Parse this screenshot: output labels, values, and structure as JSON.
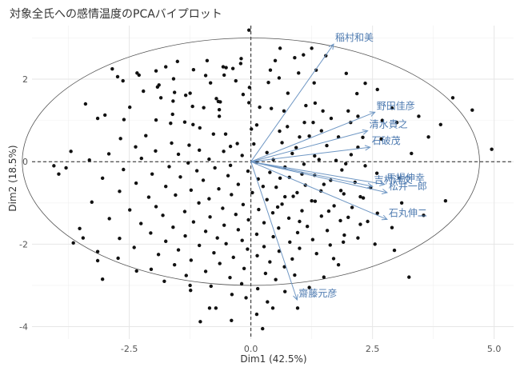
{
  "chart_data": {
    "type": "scatter",
    "title": "対象全氏への感情温度のPCAバイプロット",
    "xlabel": "Dim1 (42.5%)",
    "ylabel": "Dim2 (18.5%)",
    "xlim": [
      -4.5,
      5.4
    ],
    "ylim": [
      -4.3,
      3.3
    ],
    "x_ticks": [
      -2.5,
      0.0,
      2.5,
      5.0
    ],
    "x_tick_labels": [
      "-2.5",
      "0.0",
      "2.5",
      "5.0"
    ],
    "y_ticks": [
      -4,
      -2,
      0,
      2
    ],
    "y_tick_labels": [
      "-4",
      "-2",
      "0",
      "2"
    ],
    "grid": true,
    "reference_lines": {
      "x": 0,
      "y": 0,
      "style": "dashed"
    },
    "circle": {
      "center": [
        0,
        0
      ],
      "radius_x": 4.7,
      "radius_y": 3.0
    },
    "variables": [
      {
        "label": "稲村和美",
        "x": 1.7,
        "y": 2.85
      },
      {
        "label": "野田佳彦",
        "x": 2.55,
        "y": 1.2
      },
      {
        "label": "清水貴之",
        "x": 2.4,
        "y": 0.75
      },
      {
        "label": "石破茂",
        "x": 2.45,
        "y": 0.35
      },
      {
        "label": "馬場伸幸",
        "x": 2.75,
        "y": -0.55
      },
      {
        "label": "松井一郎",
        "x": 2.8,
        "y": -0.75
      },
      {
        "label": "吉村洋文",
        "x": 2.5,
        "y": -0.6
      },
      {
        "label": "石丸伸二",
        "x": 2.8,
        "y": -1.4
      },
      {
        "label": "齋藤元彦",
        "x": 0.95,
        "y": -3.35
      }
    ],
    "points": [
      [
        -0.04,
        3.19
      ],
      [
        1.08,
        2.59
      ],
      [
        0.9,
        2.52
      ],
      [
        -1.51,
        2.43
      ],
      [
        1.54,
        2.57
      ],
      [
        -0.37,
        2.26
      ],
      [
        -0.57,
        2.3
      ],
      [
        -0.21,
        2.38
      ],
      [
        0.4,
        2.22
      ],
      [
        1.34,
        2.22
      ],
      [
        0.58,
        2.03
      ],
      [
        -0.31,
        1.96
      ],
      [
        -0.93,
        2.09
      ],
      [
        -2.34,
        2.15
      ],
      [
        -0.83,
        1.91
      ],
      [
        -1.25,
        1.66
      ],
      [
        0.36,
        1.92
      ],
      [
        -1.59,
        2.01
      ],
      [
        -0.51,
        2.28
      ],
      [
        -1.18,
        2.23
      ],
      [
        -0.16,
        1.63
      ],
      [
        -0.55,
        2.1
      ],
      [
        -2.63,
        1.96
      ],
      [
        1.96,
        2.14
      ],
      [
        2.18,
        1.65
      ],
      [
        -2.21,
        1.71
      ],
      [
        0.98,
        2.15
      ],
      [
        -1.57,
        1.68
      ],
      [
        -1.92,
        1.81
      ],
      [
        -1.34,
        1.61
      ],
      [
        -1.89,
        1.86
      ],
      [
        -0.63,
        1.45
      ],
      [
        -0.04,
        1.43
      ],
      [
        0.76,
        1.66
      ],
      [
        1.3,
        1.91
      ],
      [
        -1.85,
        1.55
      ],
      [
        -0.03,
        1.8
      ],
      [
        -1.6,
        1.47
      ],
      [
        -2.49,
        1.32
      ],
      [
        -2.74,
        2.06
      ],
      [
        -1.2,
        1.34
      ],
      [
        -0.97,
        1.31
      ],
      [
        0.42,
        1.29
      ],
      [
        -0.67,
        1.46
      ],
      [
        2.0,
        1.23
      ],
      [
        -0.71,
        1.53
      ],
      [
        1.32,
        1.42
      ],
      [
        -3.0,
        1.13
      ],
      [
        -0.65,
        1.26
      ],
      [
        0.18,
        1.32
      ],
      [
        1.13,
        1.36
      ],
      [
        -1.61,
        1.15
      ],
      [
        1.48,
        1.23
      ],
      [
        0.68,
        1.23
      ],
      [
        -1.36,
        0.96
      ],
      [
        -0.65,
        1.1
      ],
      [
        -1.95,
        1.01
      ],
      [
        -1.65,
        0.93
      ],
      [
        0.12,
        0.89
      ],
      [
        1.28,
        0.95
      ],
      [
        -2.61,
        1.02
      ],
      [
        0.75,
        0.85
      ],
      [
        -1.05,
        0.82
      ],
      [
        0.59,
        0.74
      ],
      [
        -0.52,
        0.67
      ],
      [
        -2.16,
        0.63
      ],
      [
        2.3,
        0.59
      ],
      [
        -1.19,
        0.9
      ],
      [
        -2.68,
        0.56
      ],
      [
        -0.77,
        0.67
      ],
      [
        -1.63,
        0.45
      ],
      [
        0.01,
        0.79
      ],
      [
        1.2,
        0.62
      ],
      [
        -0.28,
        0.44
      ],
      [
        0.64,
        0.46
      ],
      [
        -1.27,
        0.4
      ],
      [
        -2.37,
        0.36
      ],
      [
        2.68,
        0.55
      ],
      [
        -0.42,
        0.37
      ],
      [
        0.06,
        0.43
      ],
      [
        1.56,
        0.39
      ],
      [
        -1.96,
        0.26
      ],
      [
        -1.06,
        0.28
      ],
      [
        0.93,
        0.34
      ],
      [
        -0.56,
        0.25
      ],
      [
        -2.92,
        0.19
      ],
      [
        0.33,
        0.22
      ],
      [
        -1.49,
        0.18
      ],
      [
        2.06,
        0.17
      ],
      [
        -0.18,
        0.15
      ],
      [
        1.31,
        0.14
      ],
      [
        -2.25,
        0.08
      ],
      [
        -0.86,
        0.06
      ],
      [
        0.46,
        0.05
      ],
      [
        1.75,
        0.03
      ],
      [
        -3.32,
        0.04
      ],
      [
        -1.29,
        -0.03
      ],
      [
        0.11,
        -0.02
      ],
      [
        -0.42,
        -0.09
      ],
      [
        1.09,
        -0.06
      ],
      [
        2.35,
        -0.1
      ],
      [
        -1.68,
        -0.12
      ],
      [
        -0.74,
        -0.15
      ],
      [
        0.7,
        -0.13
      ],
      [
        -2.62,
        -0.19
      ],
      [
        1.87,
        -0.2
      ],
      [
        -0.06,
        -0.23
      ],
      [
        -1.11,
        -0.22
      ],
      [
        0.39,
        -0.26
      ],
      [
        2.59,
        -0.28
      ],
      [
        -2.03,
        -0.3
      ],
      [
        1.31,
        -0.33
      ],
      [
        -0.47,
        -0.34
      ],
      [
        -1.45,
        -0.37
      ],
      [
        0.79,
        -0.38
      ],
      [
        -3.05,
        -0.4
      ],
      [
        0.15,
        -0.42
      ],
      [
        1.64,
        -0.45
      ],
      [
        -0.98,
        -0.45
      ],
      [
        2.14,
        -0.5
      ],
      [
        -2.36,
        -0.52
      ],
      [
        -0.26,
        -0.55
      ],
      [
        1.12,
        -0.57
      ],
      [
        -1.75,
        -0.6
      ],
      [
        0.52,
        -0.62
      ],
      [
        2.46,
        -0.63
      ],
      [
        -0.66,
        -0.66
      ],
      [
        -1.23,
        -0.69
      ],
      [
        1.44,
        -0.71
      ],
      [
        -2.7,
        -0.72
      ],
      [
        0.03,
        -0.75
      ],
      [
        1.91,
        -0.78
      ],
      [
        -0.4,
        -0.8
      ],
      [
        -1.55,
        -0.81
      ],
      [
        0.87,
        -0.84
      ],
      [
        -2.1,
        -0.86
      ],
      [
        2.31,
        -0.88
      ],
      [
        -0.86,
        -0.9
      ],
      [
        0.33,
        -0.92
      ],
      [
        1.32,
        -0.96
      ],
      [
        -3.27,
        -0.98
      ],
      [
        -1.07,
        -1.0
      ],
      [
        0.64,
        -1.03
      ],
      [
        -0.16,
        -1.04
      ],
      [
        1.71,
        -1.07
      ],
      [
        -1.95,
        -1.09
      ],
      [
        2.08,
        -1.11
      ],
      [
        -0.58,
        -1.13
      ],
      [
        0.16,
        -1.16
      ],
      [
        -2.49,
        -1.17
      ],
      [
        1.05,
        -1.19
      ],
      [
        -1.36,
        -1.21
      ],
      [
        0.45,
        -1.24
      ],
      [
        2.6,
        -1.25
      ],
      [
        -0.31,
        -1.28
      ],
      [
        -1.81,
        -1.3
      ],
      [
        1.45,
        -1.32
      ],
      [
        -0.84,
        -1.34
      ],
      [
        0.78,
        -1.37
      ],
      [
        -2.91,
        -1.38
      ],
      [
        -0.05,
        -1.41
      ],
      [
        1.84,
        -1.43
      ],
      [
        -1.18,
        -1.46
      ],
      [
        0.27,
        -1.48
      ],
      [
        -2.26,
        -1.5
      ],
      [
        2.25,
        -1.52
      ],
      [
        -0.55,
        -1.54
      ],
      [
        1.16,
        -1.57
      ],
      [
        -1.6,
        -1.59
      ],
      [
        0.57,
        -1.61
      ],
      [
        -3.52,
        -1.62
      ],
      [
        -0.26,
        -1.65
      ],
      [
        1.57,
        -1.67
      ],
      [
        -0.93,
        -1.69
      ],
      [
        0.96,
        -1.72
      ],
      [
        -2.06,
        -1.73
      ],
      [
        0.12,
        -1.76
      ],
      [
        1.92,
        -1.78
      ],
      [
        -1.35,
        -1.8
      ],
      [
        0.46,
        -1.82
      ],
      [
        -0.69,
        -1.85
      ],
      [
        -2.7,
        -1.86
      ],
      [
        1.27,
        -1.89
      ],
      [
        -0.18,
        -1.91
      ],
      [
        -1.75,
        -1.93
      ],
      [
        0.8,
        -1.95
      ],
      [
        -3.65,
        -1.97
      ],
      [
        -0.51,
        -1.99
      ],
      [
        1.63,
        -2.02
      ],
      [
        -1.06,
        -2.03
      ],
      [
        0.27,
        -2.06
      ],
      [
        -2.4,
        -2.08
      ],
      [
        1.0,
        -2.1
      ],
      [
        -0.07,
        -2.12
      ],
      [
        -1.49,
        -2.14
      ],
      [
        0.58,
        -2.17
      ],
      [
        -3.15,
        -2.18
      ],
      [
        -0.76,
        -2.21
      ],
      [
        1.35,
        -2.23
      ],
      [
        -1.9,
        -2.25
      ],
      [
        0.13,
        -2.28
      ],
      [
        -0.36,
        -2.32
      ],
      [
        -2.73,
        -2.34
      ],
      [
        0.85,
        -2.36
      ],
      [
        -1.23,
        -2.39
      ],
      [
        0.39,
        -2.43
      ],
      [
        -0.64,
        -2.47
      ],
      [
        -1.57,
        -2.5
      ],
      [
        0.69,
        -2.55
      ],
      [
        -0.14,
        -2.59
      ],
      [
        -2.05,
        -2.61
      ],
      [
        -0.93,
        -2.66
      ],
      [
        0.3,
        -2.71
      ],
      [
        -1.33,
        -2.76
      ],
      [
        -0.43,
        -2.81
      ],
      [
        0.51,
        -2.86
      ],
      [
        -1.78,
        -2.9
      ],
      [
        -0.19,
        -2.96
      ],
      [
        -0.82,
        -3.02
      ],
      [
        0.14,
        -3.08
      ],
      [
        -1.24,
        -3.12
      ],
      [
        -0.39,
        -3.22
      ],
      [
        0.34,
        -3.4
      ],
      [
        -0.72,
        -3.55
      ],
      [
        0.12,
        -3.7
      ],
      [
        -1.04,
        -3.88
      ],
      [
        0.24,
        -4.05
      ],
      [
        -0.4,
        -3.85
      ],
      [
        0.96,
        -3.55
      ],
      [
        3.25,
        -2.8
      ],
      [
        2.95,
        -2.15
      ],
      [
        4.0,
        -0.95
      ],
      [
        3.55,
        -1.3
      ],
      [
        3.3,
        0.2
      ],
      [
        3.65,
        0.6
      ],
      [
        4.15,
        1.55
      ],
      [
        4.55,
        1.25
      ],
      [
        4.95,
        0.3
      ],
      [
        3.9,
        0.9
      ],
      [
        3.45,
        1.1
      ],
      [
        3.05,
        -0.4
      ],
      [
        -3.45,
        -1.85
      ],
      [
        -3.95,
        -0.3
      ],
      [
        -3.8,
        -0.15
      ],
      [
        -3.4,
        1.4
      ],
      [
        -3.15,
        1.05
      ],
      [
        -2.85,
        2.25
      ],
      [
        -2.3,
        2.1
      ],
      [
        -1.75,
        2.3
      ],
      [
        -3.7,
        0.25
      ],
      [
        -4.05,
        -0.1
      ],
      [
        -3.15,
        -2.4
      ],
      [
        -2.35,
        -2.65
      ],
      [
        -1.25,
        -3.0
      ],
      [
        -0.85,
        -3.55
      ],
      [
        -3.05,
        -2.85
      ],
      [
        0.6,
        2.75
      ],
      [
        -0.2,
        2.5
      ],
      [
        1.25,
        2.75
      ],
      [
        0.5,
        2.45
      ],
      [
        -0.9,
        2.45
      ],
      [
        -1.95,
        2.2
      ],
      [
        2.35,
        1.9
      ],
      [
        2.6,
        1.75
      ],
      [
        2.9,
        1.3
      ],
      [
        3.0,
        0.95
      ],
      [
        2.7,
        1.0
      ],
      [
        3.1,
        -1.0
      ],
      [
        2.9,
        -1.6
      ],
      [
        1.8,
        -2.5
      ],
      [
        1.5,
        -2.8
      ],
      [
        1.2,
        -3.05
      ],
      [
        1.7,
        -2.35
      ],
      [
        2.55,
        -2.0
      ],
      [
        2.2,
        -1.85
      ],
      [
        1.9,
        -1.95
      ],
      [
        0.9,
        -2.75
      ],
      [
        0.7,
        -3.15
      ],
      [
        0.45,
        -3.55
      ],
      [
        -0.1,
        -3.3
      ],
      [
        1.1,
        0.95
      ],
      [
        1.45,
        0.75
      ],
      [
        1.8,
        0.6
      ],
      [
        2.05,
        0.95
      ],
      [
        2.2,
        1.1
      ],
      [
        1.65,
        1.05
      ],
      [
        1.0,
        0.6
      ],
      [
        0.85,
        0.2
      ],
      [
        1.4,
        0.05
      ],
      [
        1.95,
        -0.05
      ],
      [
        2.2,
        0.35
      ],
      [
        0.6,
        -0.4
      ],
      [
        1.05,
        -0.3
      ],
      [
        1.5,
        -0.55
      ],
      [
        1.85,
        -0.7
      ],
      [
        2.25,
        -0.85
      ],
      [
        0.95,
        -0.75
      ],
      [
        1.25,
        -0.95
      ],
      [
        0.25,
        -0.6
      ],
      [
        0.7,
        -0.85
      ],
      [
        1.6,
        -1.2
      ],
      [
        2.0,
        -1.35
      ],
      [
        2.4,
        -1.45
      ],
      [
        0.55,
        -1.1
      ],
      [
        1.0,
        -1.45
      ]
    ]
  }
}
